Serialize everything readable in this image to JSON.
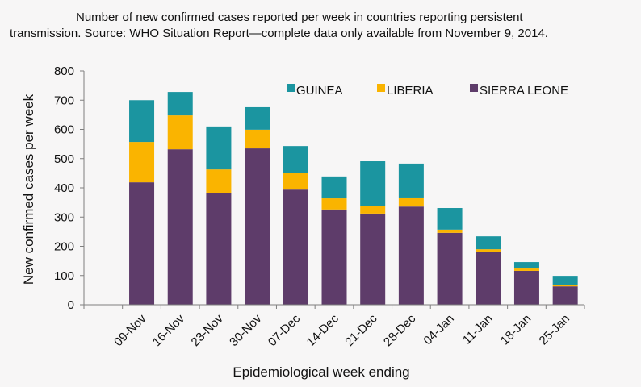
{
  "chart_data": {
    "type": "bar",
    "stacked": true,
    "title": "Number of new confirmed cases reported per week in countries reporting persistent transmission. Source: WHO Situation Report—complete data only available from November 9, 2014.",
    "title_lines": [
      "Number of new confirmed cases reported per week in countries reporting persistent",
      "transmission. Source: WHO Situation Report—complete data only available from November 9, 2014."
    ],
    "xlabel": "Epidemiological week ending",
    "ylabel": "New confirmed cases per week",
    "ylim": [
      0,
      800
    ],
    "yticks": [
      0,
      100,
      200,
      300,
      400,
      500,
      600,
      700,
      800
    ],
    "grid": false,
    "legend_position": "top-right",
    "leading_empty_category": true,
    "categories": [
      "09-Nov",
      "16-Nov",
      "23-Nov",
      "30-Nov",
      "07-Dec",
      "14-Dec",
      "21-Dec",
      "28-Dec",
      "04-Jan",
      "11-Jan",
      "18-Jan",
      "25-Jan"
    ],
    "series": [
      {
        "name": "SIERRA LEONE",
        "color": "#5e3c6a",
        "values": [
          419,
          532,
          383,
          535,
          394,
          326,
          312,
          336,
          246,
          182,
          116,
          63
        ]
      },
      {
        "name": "LIBERIA",
        "color": "#fab400",
        "values": [
          138,
          116,
          80,
          64,
          56,
          38,
          25,
          31,
          11,
          8,
          8,
          6
        ]
      },
      {
        "name": "GUINEA",
        "color": "#1b95a0",
        "values": [
          143,
          80,
          147,
          77,
          93,
          75,
          154,
          116,
          74,
          44,
          22,
          30
        ]
      }
    ],
    "legend_order": [
      "GUINEA",
      "LIBERIA",
      "SIERRA LEONE"
    ]
  },
  "colors": {
    "axis": "#7f7f7f",
    "background": "#f7f6f6"
  }
}
